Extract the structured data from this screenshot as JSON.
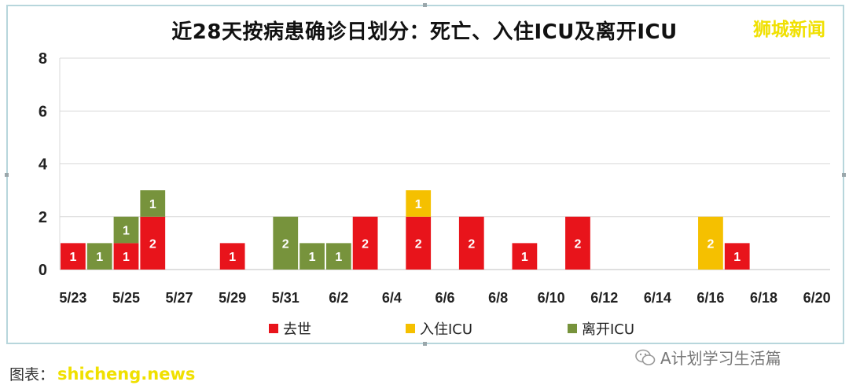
{
  "page": {
    "brand": "狮城新闻",
    "footer_source_label": "图表：",
    "footer_watermark": "shicheng.news",
    "footer_account": "A计划学习生活篇"
  },
  "colors": {
    "deaths": "#e8141b",
    "icu_admitted": "#f5c000",
    "icu_discharged": "#77933c"
  },
  "chart_data": {
    "type": "bar",
    "stacked": true,
    "title": "近28天按病患确诊日划分：死亡、入住ICU及离开ICU",
    "categories": [
      "5/23",
      "5/24",
      "5/25",
      "5/26",
      "5/27",
      "5/28",
      "5/29",
      "5/30",
      "5/31",
      "6/1",
      "6/2",
      "6/3",
      "6/4",
      "6/5",
      "6/6",
      "6/7",
      "6/8",
      "6/9",
      "6/10",
      "6/11",
      "6/12",
      "6/13",
      "6/14",
      "6/15",
      "6/16",
      "6/17",
      "6/18",
      "6/19",
      "6/20"
    ],
    "x_tick_labels": [
      "5/23",
      "5/25",
      "5/27",
      "5/29",
      "5/31",
      "6/2",
      "6/4",
      "6/6",
      "6/8",
      "6/10",
      "6/12",
      "6/14",
      "6/16",
      "6/18",
      "6/20"
    ],
    "ylim": [
      0,
      8
    ],
    "y_ticks": [
      0,
      2,
      4,
      6,
      8
    ],
    "grid": true,
    "legend_position": "bottom",
    "series": [
      {
        "name": "去世",
        "color": "#e8141b",
        "values": [
          1,
          0,
          1,
          2,
          0,
          0,
          1,
          0,
          0,
          0,
          0,
          2,
          0,
          2,
          0,
          2,
          0,
          1,
          0,
          2,
          0,
          0,
          0,
          0,
          0,
          1,
          0,
          0,
          0
        ]
      },
      {
        "name": "入住ICU",
        "color": "#f5c000",
        "values": [
          0,
          0,
          0,
          0,
          0,
          0,
          0,
          0,
          0,
          0,
          0,
          0,
          0,
          1,
          0,
          0,
          0,
          0,
          0,
          0,
          0,
          0,
          0,
          0,
          2,
          0,
          0,
          0,
          0
        ]
      },
      {
        "name": "离开ICU",
        "color": "#77933c",
        "values": [
          0,
          1,
          1,
          1,
          0,
          0,
          0,
          0,
          2,
          1,
          1,
          0,
          0,
          0,
          0,
          0,
          0,
          0,
          0,
          0,
          0,
          0,
          0,
          0,
          0,
          0,
          0,
          0,
          0
        ]
      }
    ]
  }
}
